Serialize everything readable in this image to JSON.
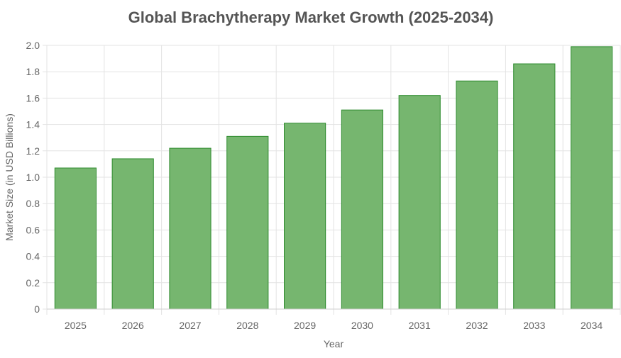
{
  "colors": {
    "bar_fill": "#76b66f",
    "bar_stroke": "#2e8b2e",
    "grid": "#e3e3e3",
    "axis": "#cfcfcf",
    "title": "#555555",
    "tick_text": "#666666"
  },
  "chart_data": {
    "type": "bar",
    "title": "Global Brachytherapy Market Growth (2025-2034)",
    "xlabel": "Year",
    "ylabel": "Market Size (in USD Billions)",
    "categories": [
      "2025",
      "2026",
      "2027",
      "2028",
      "2029",
      "2030",
      "2031",
      "2032",
      "2033",
      "2034"
    ],
    "values": [
      1.07,
      1.14,
      1.22,
      1.31,
      1.41,
      1.51,
      1.62,
      1.73,
      1.86,
      1.99
    ],
    "ylim": [
      0,
      2.0
    ],
    "yticks": [
      0,
      0.2,
      0.4,
      0.6,
      0.8,
      1.0,
      1.2,
      1.4,
      1.6,
      1.8,
      2.0
    ],
    "ytick_labels": [
      "0",
      "0.2",
      "0.4",
      "0.6",
      "0.8",
      "1.0",
      "1.2",
      "1.4",
      "1.6",
      "1.8",
      "2.0"
    ],
    "grid": true,
    "legend": "none"
  }
}
